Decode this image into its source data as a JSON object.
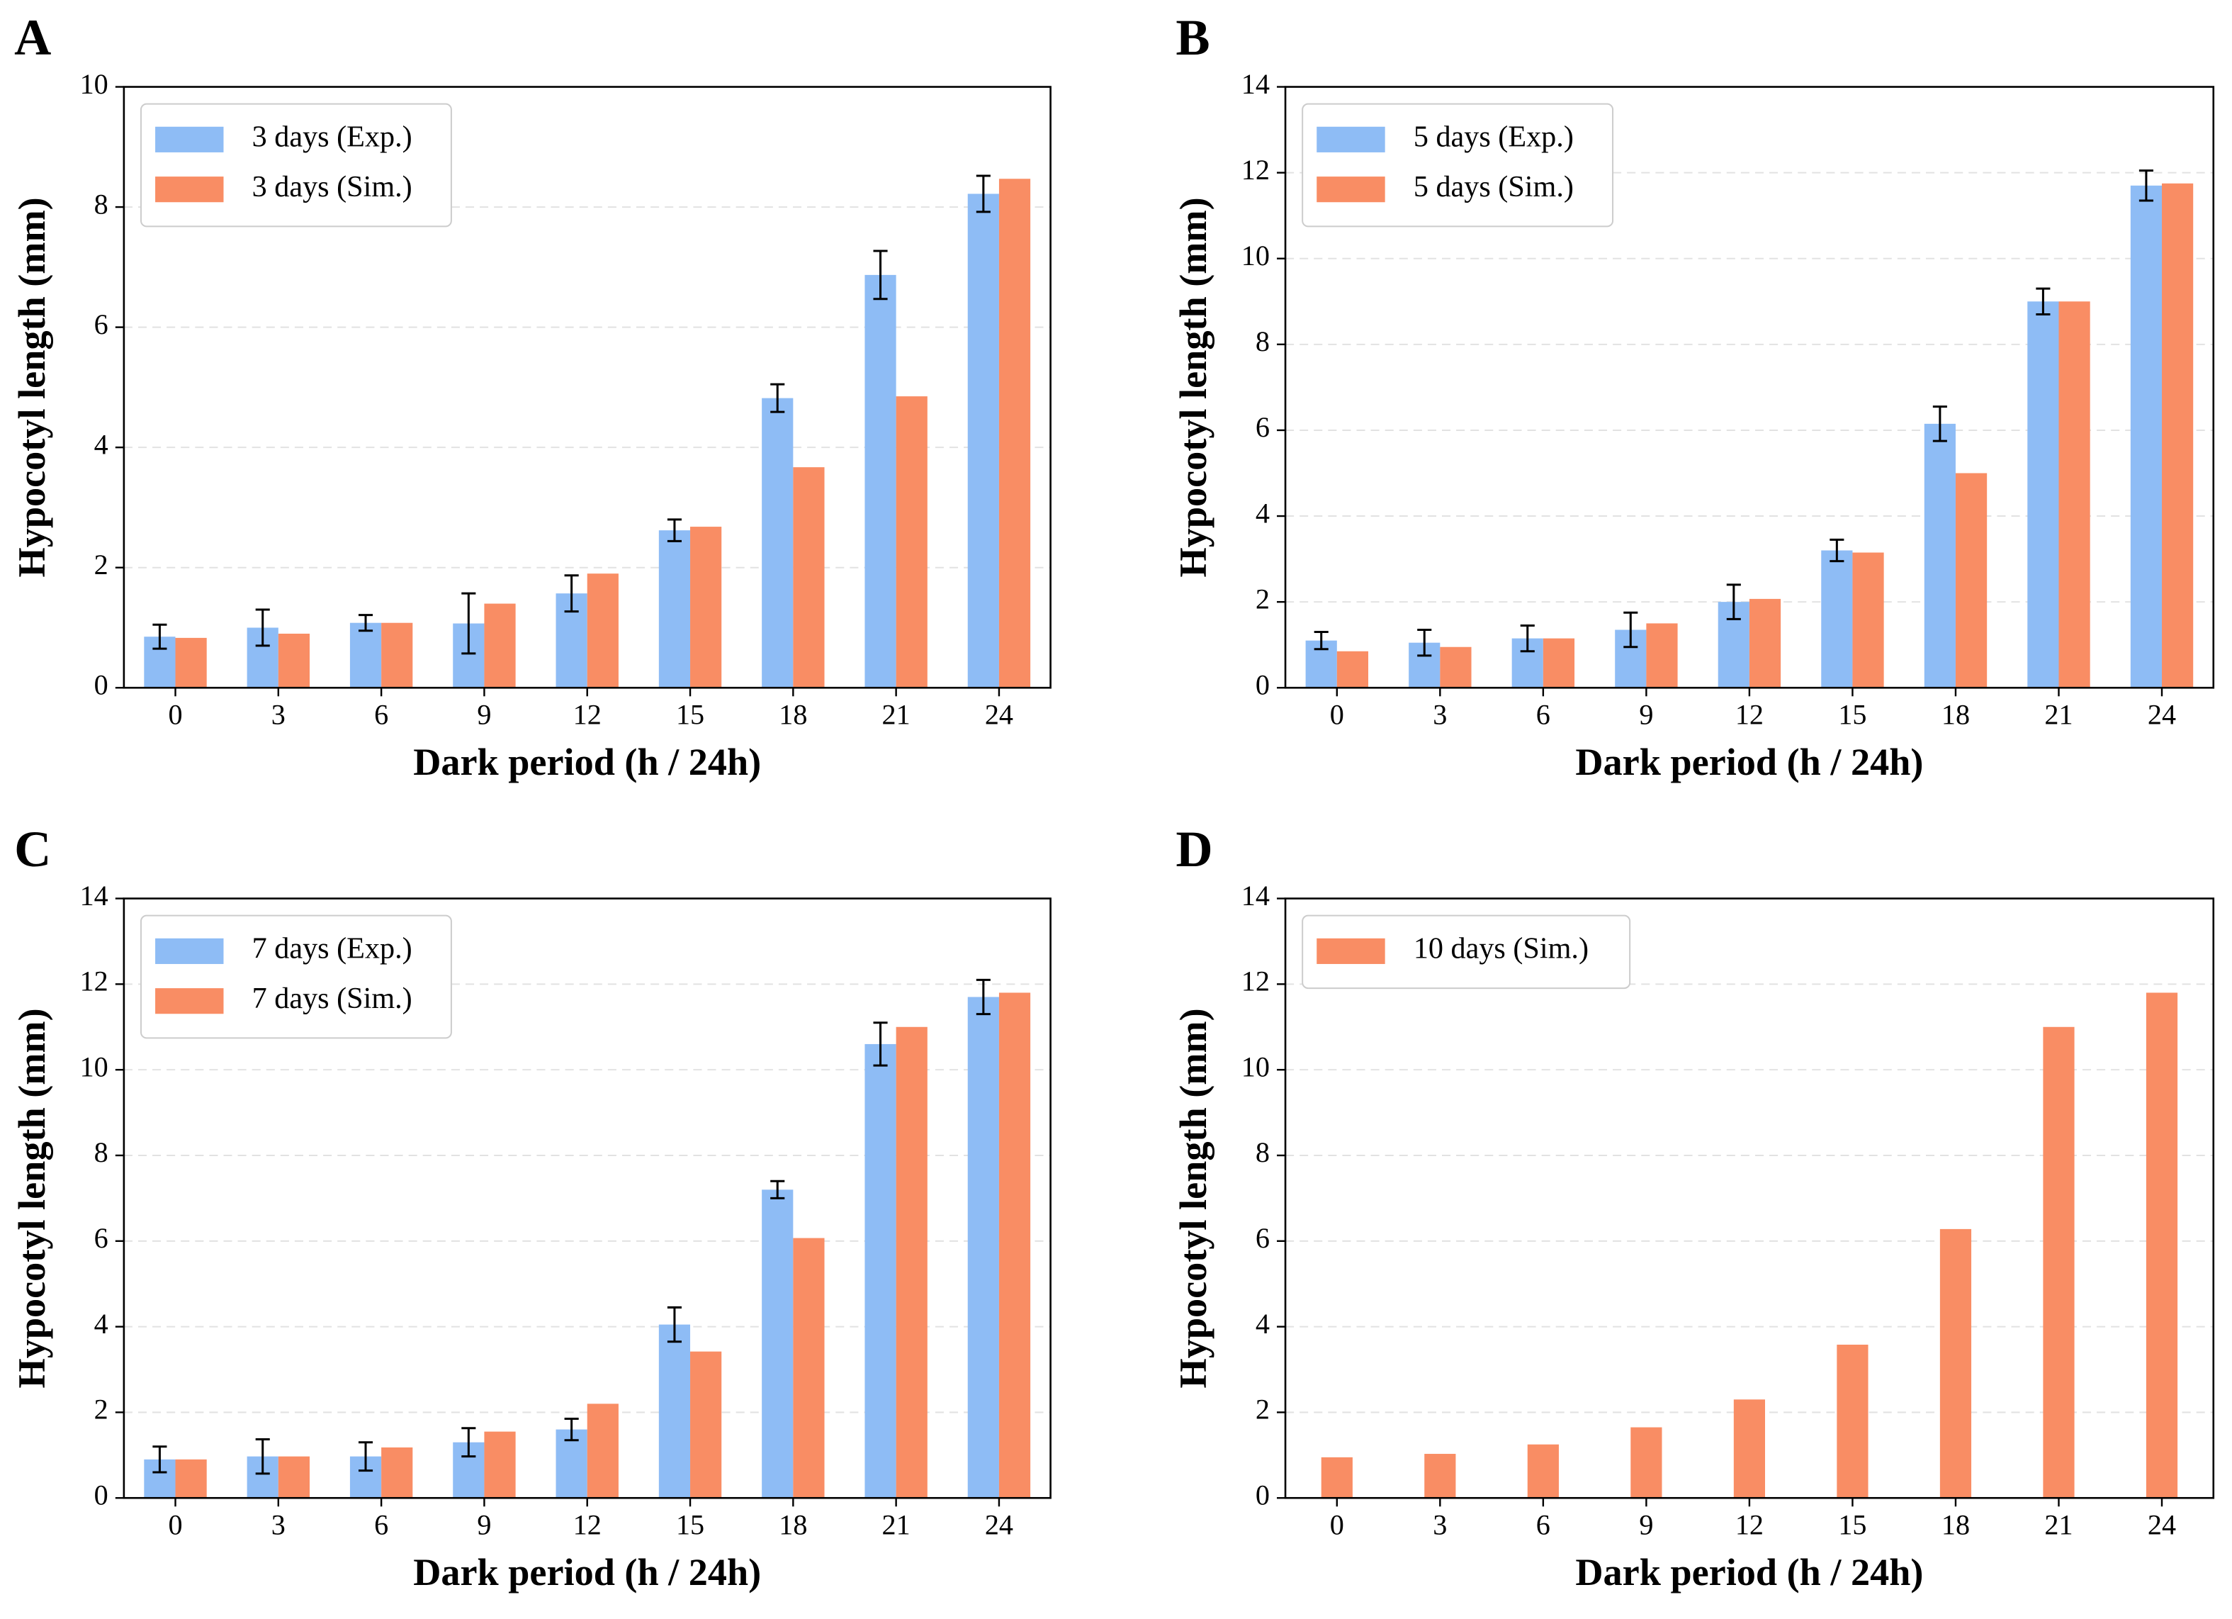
{
  "chart_data": [
    {
      "type": "bar",
      "panel": "A",
      "xlabel": "Dark period (h / 24h)",
      "ylabel": "Hypocotyl length (mm)",
      "categories": [
        0,
        3,
        6,
        9,
        12,
        15,
        18,
        21,
        24
      ],
      "ylim": [
        0,
        10
      ],
      "yticks": [
        0,
        2,
        4,
        6,
        8,
        10
      ],
      "grid": true,
      "legend": "upper left",
      "series": [
        {
          "name": "3 days (Exp.)",
          "color": "#8ebcf5",
          "values": [
            0.85,
            1.0,
            1.08,
            1.07,
            1.57,
            2.62,
            4.82,
            6.87,
            8.22
          ],
          "errors": [
            0.2,
            0.3,
            0.13,
            0.5,
            0.3,
            0.18,
            0.23,
            0.4,
            0.3
          ]
        },
        {
          "name": "3 days (Sim.)",
          "color": "#f98d64",
          "values": [
            0.83,
            0.9,
            1.08,
            1.4,
            1.9,
            2.68,
            3.67,
            4.85,
            8.47
          ]
        }
      ]
    },
    {
      "type": "bar",
      "panel": "B",
      "xlabel": "Dark period (h / 24h)",
      "ylabel": "Hypocotyl length (mm)",
      "categories": [
        0,
        3,
        6,
        9,
        12,
        15,
        18,
        21,
        24
      ],
      "ylim": [
        0,
        14
      ],
      "yticks": [
        0,
        2,
        4,
        6,
        8,
        10,
        12,
        14
      ],
      "grid": true,
      "legend": "upper left",
      "series": [
        {
          "name": "5 days (Exp.)",
          "color": "#8ebcf5",
          "values": [
            1.1,
            1.05,
            1.15,
            1.35,
            2.0,
            3.2,
            6.15,
            9.0,
            11.7
          ],
          "errors": [
            0.2,
            0.3,
            0.3,
            0.4,
            0.4,
            0.25,
            0.4,
            0.3,
            0.35
          ]
        },
        {
          "name": "5 days (Sim.)",
          "color": "#f98d64",
          "values": [
            0.85,
            0.95,
            1.15,
            1.5,
            2.07,
            3.15,
            5.0,
            9.0,
            11.75
          ]
        }
      ]
    },
    {
      "type": "bar",
      "panel": "C",
      "xlabel": "Dark period (h / 24h)",
      "ylabel": "Hypocotyl length (mm)",
      "categories": [
        0,
        3,
        6,
        9,
        12,
        15,
        18,
        21,
        24
      ],
      "ylim": [
        0,
        14
      ],
      "yticks": [
        0,
        2,
        4,
        6,
        8,
        10,
        12,
        14
      ],
      "grid": true,
      "legend": "upper left",
      "series": [
        {
          "name": "7 days (Exp.)",
          "color": "#8ebcf5",
          "values": [
            0.9,
            0.97,
            0.97,
            1.3,
            1.6,
            4.05,
            7.2,
            10.6,
            11.7
          ],
          "errors": [
            0.3,
            0.4,
            0.33,
            0.33,
            0.25,
            0.4,
            0.2,
            0.5,
            0.4
          ]
        },
        {
          "name": "7 days (Sim.)",
          "color": "#f98d64",
          "values": [
            0.9,
            0.97,
            1.18,
            1.55,
            2.2,
            3.42,
            6.07,
            11.0,
            11.8
          ]
        }
      ]
    },
    {
      "type": "bar",
      "panel": "D",
      "xlabel": "Dark period (h / 24h)",
      "ylabel": "Hypocotyl length (mm)",
      "categories": [
        0,
        3,
        6,
        9,
        12,
        15,
        18,
        21,
        24
      ],
      "ylim": [
        0,
        14
      ],
      "yticks": [
        0,
        2,
        4,
        6,
        8,
        10,
        12,
        14
      ],
      "grid": true,
      "legend": "upper left",
      "series": [
        {
          "name": "10 days (Sim.)",
          "color": "#f98d64",
          "values": [
            0.95,
            1.03,
            1.25,
            1.65,
            2.3,
            3.58,
            6.28,
            11.0,
            11.8
          ]
        }
      ]
    }
  ]
}
